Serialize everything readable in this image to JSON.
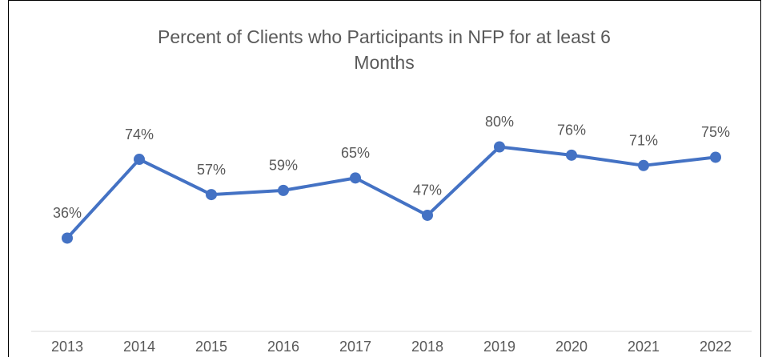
{
  "chart_data": {
    "type": "line",
    "title": "Percent of Clients who Participants in NFP for at least 6 Months",
    "categories": [
      "2013",
      "2014",
      "2015",
      "2016",
      "2017",
      "2018",
      "2019",
      "2020",
      "2021",
      "2022"
    ],
    "values": [
      36,
      74,
      57,
      59,
      65,
      47,
      80,
      76,
      71,
      75
    ],
    "value_labels": [
      "36%",
      "74%",
      "57%",
      "59%",
      "65%",
      "47%",
      "80%",
      "76%",
      "71%",
      "75%"
    ],
    "color": "#4472c4",
    "ylim": [
      -9,
      90
    ]
  }
}
